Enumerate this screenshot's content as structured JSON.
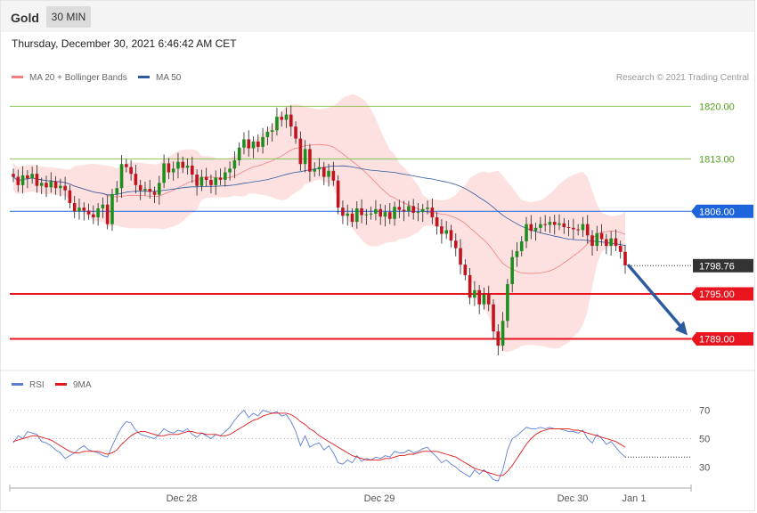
{
  "header": {
    "title": "Gold",
    "timeframe": "30 MIN"
  },
  "timestamp": "Thursday, December 30, 2021 6:46:42 AM CET",
  "legend": {
    "ma20": {
      "label": "MA 20 + Bollinger Bands",
      "color": "#f08080"
    },
    "ma50": {
      "label": "MA 50",
      "color": "#2e5a9e"
    },
    "credit": "Research © 2021 Trading Central"
  },
  "rsi_legend": {
    "rsi": {
      "label": "RSI",
      "color": "#5b7fd6"
    },
    "ma9": {
      "label": "9MA",
      "color": "#e01a1a"
    }
  },
  "colors": {
    "up": "#1e8f1e",
    "down": "#c0141e",
    "resistance": "#8fc25a",
    "pivot": "#1e64dc",
    "support": "#e8141e",
    "arrow": "#2e5a9e",
    "band": "#fcd6d6"
  },
  "chart_data": [
    {
      "type": "candlestick",
      "ylim": [
        1785.5,
        1822.3
      ],
      "x_ticks": [
        "Dec 28",
        "Dec 29",
        "Dec 30",
        "Jan 1"
      ],
      "levels": [
        {
          "value": 1820.0,
          "label": "1820.00",
          "kind": "resistance"
        },
        {
          "value": 1813.0,
          "label": "1813.00",
          "kind": "resistance"
        },
        {
          "value": 1806.0,
          "label": "1806.00",
          "kind": "pivot"
        },
        {
          "value": 1798.76,
          "label": "1798.76",
          "kind": "last"
        },
        {
          "value": 1795.0,
          "label": "1795.00",
          "kind": "support"
        },
        {
          "value": 1789.0,
          "label": "1789.00",
          "kind": "support"
        }
      ],
      "forecast": {
        "from": 1798.76,
        "to": 1789.0
      },
      "close": [
        1810.6,
        1809.5,
        1810.8,
        1810.4,
        1811.0,
        1809.4,
        1809.8,
        1809.2,
        1810.0,
        1809.1,
        1809.4,
        1808.8,
        1807.1,
        1806.0,
        1806.5,
        1806.1,
        1805.6,
        1805.2,
        1806.4,
        1806.9,
        1804.3,
        1808.3,
        1809.1,
        1812.3,
        1811.9,
        1811.0,
        1809.5,
        1808.8,
        1809.0,
        1808.6,
        1808.2,
        1809.8,
        1812.4,
        1811.2,
        1811.7,
        1812.6,
        1811.8,
        1812.1,
        1810.9,
        1809.4,
        1810.6,
        1810.2,
        1809.5,
        1810.5,
        1810.2,
        1811.2,
        1811.7,
        1812.8,
        1814.5,
        1815.6,
        1814.4,
        1815.3,
        1814.6,
        1815.9,
        1816.6,
        1816.8,
        1818.6,
        1818.2,
        1818.9,
        1817.3,
        1815.7,
        1812.3,
        1814.3,
        1811.3,
        1811.6,
        1811.9,
        1810.6,
        1811.4,
        1810.1,
        1806.5,
        1805.4,
        1805.7,
        1804.6,
        1806.4,
        1805.5,
        1805.6,
        1805.7,
        1806.3,
        1805.3,
        1805.9,
        1805.0,
        1806.6,
        1806.2,
        1806.0,
        1806.7,
        1805.8,
        1805.9,
        1806.3,
        1806.5,
        1805.2,
        1804.0,
        1803.0,
        1803.5,
        1802.1,
        1801.1,
        1798.9,
        1797.5,
        1794.5,
        1795.5,
        1793.6,
        1794.9,
        1793.6,
        1790.0,
        1788.1,
        1791.4,
        1796.3,
        1799.9,
        1800.7,
        1802.0,
        1804.3,
        1803.4,
        1803.8,
        1804.3,
        1804.2,
        1804.6,
        1804.2,
        1804.4,
        1803.9,
        1803.8,
        1803.6,
        1803.5,
        1804.3,
        1802.8,
        1801.4,
        1803.1,
        1802.3,
        1801.4,
        1802.4,
        1801.4,
        1800.6,
        1798.8
      ],
      "open": [
        1811.0,
        1810.6,
        1809.5,
        1810.8,
        1810.4,
        1811.0,
        1809.4,
        1809.8,
        1809.2,
        1810.0,
        1809.1,
        1809.4,
        1808.8,
        1807.1,
        1806.0,
        1806.5,
        1806.1,
        1805.6,
        1805.2,
        1806.4,
        1806.9,
        1804.3,
        1808.3,
        1809.1,
        1812.3,
        1811.9,
        1811.0,
        1809.5,
        1808.8,
        1809.0,
        1808.6,
        1808.2,
        1809.8,
        1812.4,
        1811.2,
        1811.7,
        1812.6,
        1811.8,
        1812.1,
        1810.9,
        1809.4,
        1810.6,
        1810.2,
        1809.5,
        1810.5,
        1810.2,
        1811.2,
        1811.7,
        1812.8,
        1814.5,
        1815.6,
        1814.4,
        1815.3,
        1814.6,
        1815.9,
        1816.6,
        1816.8,
        1818.6,
        1818.2,
        1818.9,
        1817.3,
        1815.7,
        1812.3,
        1814.3,
        1811.3,
        1811.6,
        1811.9,
        1810.6,
        1811.4,
        1810.1,
        1806.5,
        1805.4,
        1805.7,
        1804.6,
        1806.4,
        1805.5,
        1805.6,
        1805.7,
        1806.3,
        1805.3,
        1805.9,
        1805.0,
        1806.6,
        1806.2,
        1806.0,
        1806.7,
        1805.8,
        1805.9,
        1806.3,
        1806.5,
        1805.2,
        1804.0,
        1803.0,
        1803.5,
        1802.1,
        1801.1,
        1798.9,
        1797.5,
        1794.5,
        1795.5,
        1793.6,
        1794.9,
        1793.6,
        1790.0,
        1788.1,
        1791.4,
        1796.3,
        1799.9,
        1800.7,
        1802.0,
        1804.3,
        1803.4,
        1803.8,
        1804.3,
        1804.2,
        1804.6,
        1804.2,
        1804.4,
        1803.9,
        1803.8,
        1803.6,
        1803.5,
        1804.3,
        1802.8,
        1801.4,
        1803.1,
        1802.3,
        1801.4,
        1802.4,
        1801.4,
        1800.6
      ],
      "rsi": {
        "ylim": [
          17,
          78
        ],
        "ticks": [
          70,
          50,
          30
        ],
        "rsi": [
          47,
          52,
          50,
          55,
          54,
          53,
          48,
          47,
          45,
          42,
          40,
          36,
          38,
          40,
          43,
          45,
          42,
          41,
          40,
          38,
          37,
          45,
          52,
          58,
          62,
          61,
          56,
          53,
          52,
          51,
          50,
          53,
          57,
          55,
          54,
          56,
          55,
          57,
          53,
          51,
          54,
          52,
          50,
          53,
          52,
          55,
          58,
          63,
          67,
          70,
          65,
          68,
          66,
          70,
          69,
          68,
          69,
          66,
          67,
          62,
          55,
          45,
          52,
          44,
          46,
          47,
          42,
          45,
          40,
          33,
          32,
          35,
          33,
          38,
          34,
          36,
          35,
          37,
          36,
          38,
          37,
          41,
          40,
          40,
          42,
          40,
          41,
          43,
          44,
          40,
          37,
          33,
          35,
          32,
          30,
          27,
          25,
          23,
          28,
          25,
          28,
          25,
          21,
          20,
          28,
          42,
          50,
          52,
          55,
          58,
          57,
          57,
          58,
          57,
          58,
          57,
          57,
          56,
          55,
          55,
          54,
          56,
          50,
          47,
          53,
          50,
          46,
          48,
          44,
          40,
          37
        ],
        "ma9": [
          48,
          49,
          50,
          51,
          52,
          52,
          51,
          50,
          49,
          47,
          45,
          43,
          41,
          40,
          40,
          41,
          41,
          41,
          41,
          40,
          39,
          40,
          42,
          46,
          49,
          52,
          54,
          55,
          55,
          54,
          53,
          52,
          52,
          53,
          53,
          53,
          54,
          55,
          55,
          54,
          54,
          53,
          53,
          53,
          52,
          52,
          53,
          55,
          57,
          59,
          61,
          63,
          64,
          66,
          67,
          68,
          68,
          68,
          68,
          67,
          65,
          62,
          60,
          57,
          55,
          52,
          50,
          48,
          46,
          44,
          42,
          40,
          38,
          37,
          36,
          35,
          35,
          35,
          35,
          36,
          36,
          37,
          38,
          38,
          39,
          39,
          40,
          41,
          41,
          41,
          41,
          40,
          39,
          38,
          37,
          35,
          33,
          31,
          29,
          28,
          27,
          26,
          25,
          24,
          24,
          27,
          31,
          36,
          41,
          46,
          50,
          53,
          55,
          56,
          57,
          57,
          57,
          57,
          57,
          56,
          56,
          55,
          54,
          53,
          52,
          51,
          50,
          49,
          48,
          46,
          44
        ]
      }
    }
  ]
}
